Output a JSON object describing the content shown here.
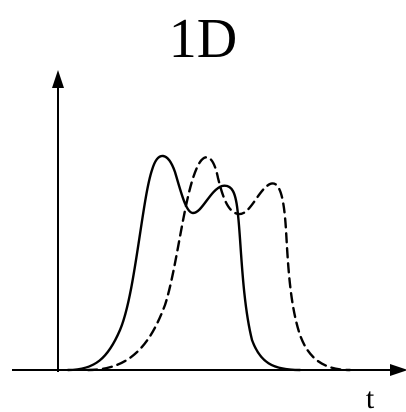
{
  "title": "1D",
  "x_axis_label": "t",
  "colors": {
    "background": "#ffffff",
    "ink": "#000000"
  },
  "curves": [
    {
      "style": "solid"
    },
    {
      "style": "dashed"
    }
  ]
}
